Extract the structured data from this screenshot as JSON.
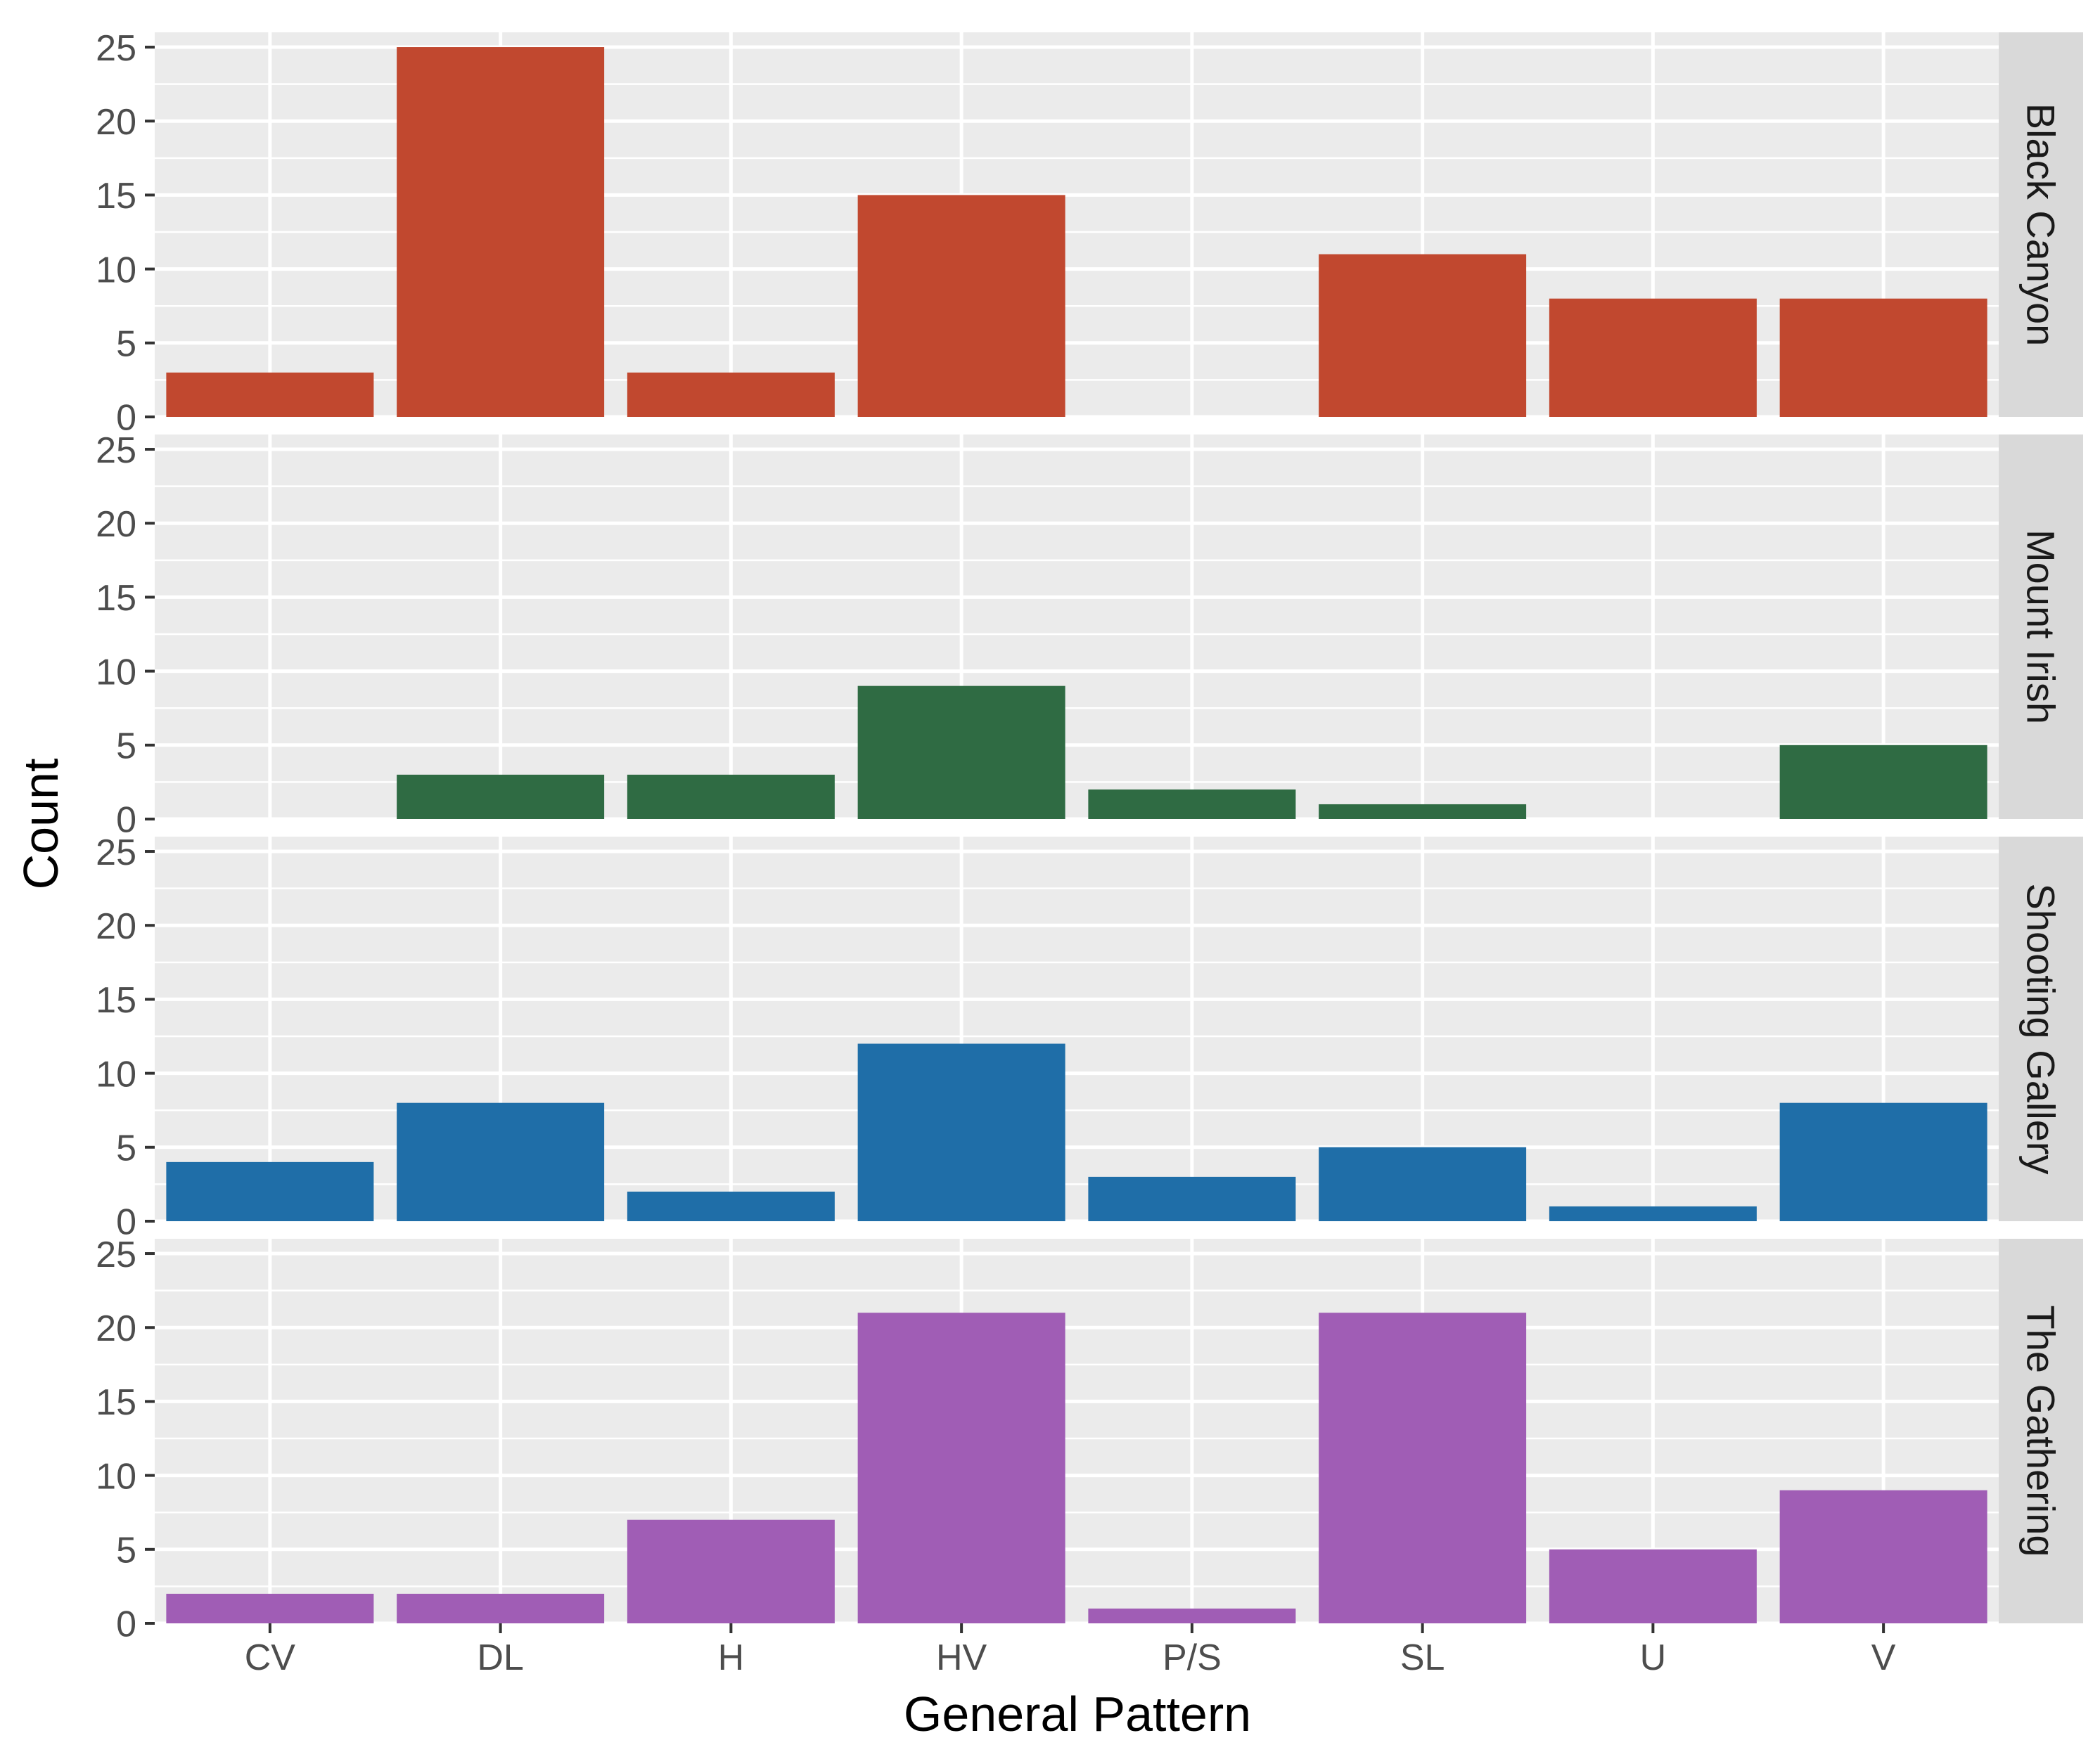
{
  "chart_data": {
    "type": "bar",
    "facet": "rows",
    "xlabel": "General Pattern",
    "ylabel": "Count",
    "categories": [
      "CV",
      "DL",
      "H",
      "HV",
      "P/S",
      "SL",
      "U",
      "V"
    ],
    "ylim": [
      0,
      26
    ],
    "yticks": [
      0,
      5,
      10,
      15,
      20,
      25
    ],
    "grid": true,
    "panels": [
      {
        "name": "Black Canyon",
        "color": "#C1482F",
        "values": [
          3,
          25,
          3,
          15,
          0,
          11,
          8,
          8
        ]
      },
      {
        "name": "Mount Irish",
        "color": "#2F6B43",
        "values": [
          0,
          3,
          3,
          9,
          2,
          1,
          0,
          5
        ]
      },
      {
        "name": "Shooting Gallery",
        "color": "#1F6EA8",
        "values": [
          4,
          8,
          2,
          12,
          3,
          5,
          1,
          8
        ]
      },
      {
        "name": "The Gathering",
        "color": "#A05DB5",
        "values": [
          2,
          2,
          7,
          21,
          1,
          21,
          5,
          9
        ]
      }
    ]
  }
}
